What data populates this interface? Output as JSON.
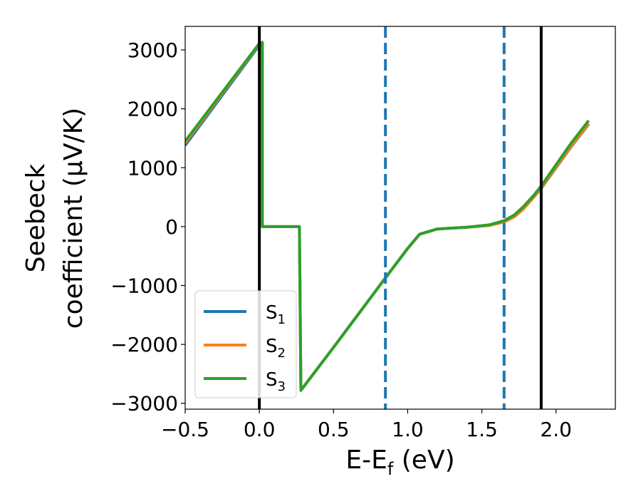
{
  "chart_data": {
    "type": "line",
    "xlabel": {
      "base": "E-E",
      "sub": "f",
      "tail": " (eV)"
    },
    "ylabel": {
      "line1": "Seebeck",
      "line2": "coefficient  (μV/K)"
    },
    "xlim": [
      -0.5,
      2.4
    ],
    "ylim": [
      -3100,
      3400
    ],
    "x_ticks": [
      -0.5,
      0.0,
      0.5,
      1.0,
      1.5,
      2.0
    ],
    "x_tick_labels": [
      "−0.5",
      "0.0",
      "0.5",
      "1.0",
      "1.5",
      "2.0"
    ],
    "y_ticks": [
      -3000,
      -2000,
      -1000,
      0,
      1000,
      2000,
      3000
    ],
    "y_tick_labels": [
      "−3000",
      "−2000",
      "−1000",
      "0",
      "1000",
      "2000",
      "3000"
    ],
    "grid": false,
    "legend_placement": "lower-left",
    "vertical_lines": [
      {
        "x": 0.0,
        "style": "solid",
        "color": "#000000"
      },
      {
        "x": 0.85,
        "style": "dashed",
        "color": "#1f77b4"
      },
      {
        "x": 1.65,
        "style": "dashed",
        "color": "#1f77b4"
      },
      {
        "x": 1.9,
        "style": "solid",
        "color": "#000000"
      }
    ],
    "series": [
      {
        "name": {
          "base": "S",
          "sub": "1"
        },
        "color": "#1f77b4",
        "x": [
          -0.5,
          0.0,
          0.02,
          0.02,
          0.27,
          0.28,
          0.5,
          0.85,
          1.0,
          1.08,
          1.2,
          1.4,
          1.55,
          1.65,
          1.72,
          1.78,
          1.85,
          1.9,
          2.0,
          2.1,
          2.22
        ],
        "y": [
          1380,
          3080,
          3100,
          0,
          0,
          -2780,
          -2050,
          -870,
          -370,
          -130,
          -40,
          -10,
          20,
          80,
          170,
          300,
          500,
          650,
          1000,
          1350,
          1740
        ]
      },
      {
        "name": {
          "base": "S",
          "sub": "2"
        },
        "color": "#ff7f0e",
        "x": [
          -0.5,
          0.0,
          0.02,
          0.02,
          0.27,
          0.28,
          0.5,
          0.85,
          1.0,
          1.08,
          1.2,
          1.4,
          1.55,
          1.65,
          1.72,
          1.78,
          1.85,
          1.9,
          2.0,
          2.1,
          2.22
        ],
        "y": [
          1420,
          3100,
          3120,
          0,
          0,
          -2780,
          -2050,
          -870,
          -370,
          -130,
          -40,
          -10,
          20,
          80,
          170,
          300,
          500,
          660,
          1010,
          1360,
          1750
        ]
      },
      {
        "name": {
          "base": "S",
          "sub": "3"
        },
        "color": "#2ca02c",
        "x": [
          -0.5,
          0.0,
          0.02,
          0.02,
          0.27,
          0.28,
          0.5,
          0.85,
          1.0,
          1.08,
          1.2,
          1.4,
          1.55,
          1.65,
          1.72,
          1.78,
          1.85,
          1.9,
          2.0,
          2.1,
          2.22
        ],
        "y": [
          1450,
          3110,
          3130,
          0,
          0,
          -2780,
          -2050,
          -870,
          -370,
          -130,
          -40,
          -10,
          30,
          100,
          200,
          340,
          530,
          690,
          1050,
          1410,
          1800
        ]
      }
    ]
  }
}
